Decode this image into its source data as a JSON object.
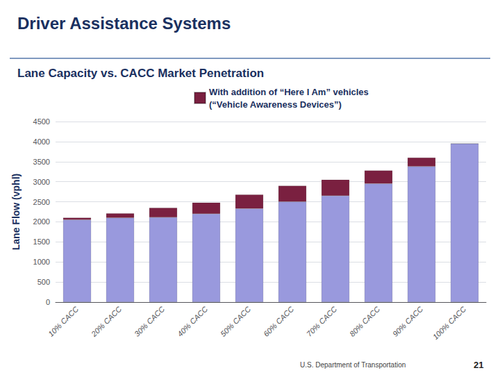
{
  "chart_data": {
    "type": "bar",
    "title": "Driver Assistance Systems",
    "subtitle": "Lane Capacity vs. CACC Market Penetration",
    "ylabel": "Lane Flow (vphl)",
    "annotations": [
      "U.S. Department of Transportation",
      "21"
    ],
    "categories": [
      "10% CACC",
      "20% CACC",
      "30% CACC",
      "40% CACC",
      "50% CACC",
      "60% CACC",
      "70% CACC",
      "80% CACC",
      "90% CACC",
      "100% CACC"
    ],
    "series": [
      {
        "color": "#9999dd",
        "values": [
          2050,
          2100,
          2110,
          2200,
          2330,
          2500,
          2650,
          2950,
          3380,
          3950
        ]
      },
      {
        "name": "With addition of “Here I Am” vehicles\n(“Vehicle Awareness Devices”)",
        "color": "#7a2040",
        "values": [
          55,
          110,
          240,
          280,
          350,
          400,
          400,
          330,
          220,
          0
        ]
      }
    ],
    "stacked": true,
    "ylim": [
      0,
      4500
    ],
    "yticks": [
      0,
      500,
      1000,
      1500,
      2000,
      2500,
      3000,
      3500,
      4000,
      4500
    ],
    "grid": true,
    "legend": "top"
  }
}
